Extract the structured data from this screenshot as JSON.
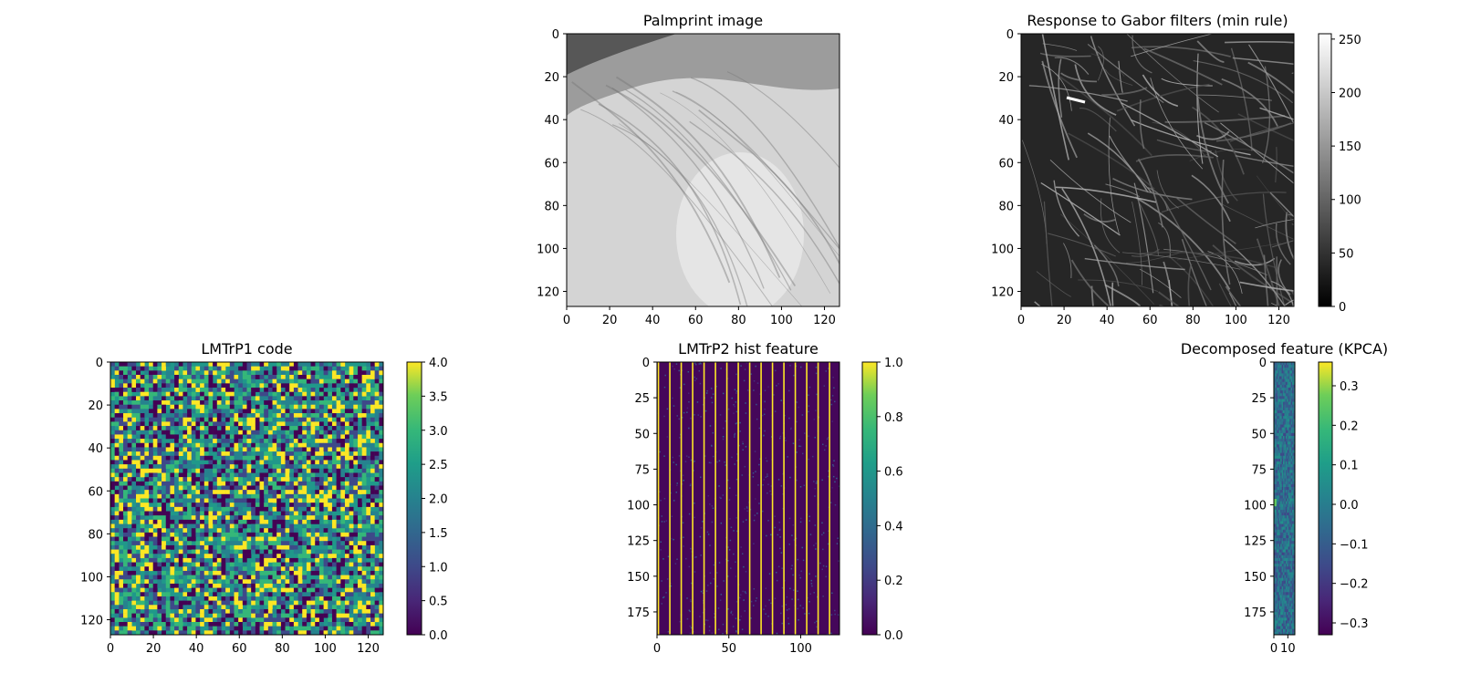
{
  "chart_data": [
    {
      "type": "heatmap",
      "title": "Palmprint image",
      "colormap": "gray",
      "image_shape": [
        128,
        128
      ],
      "xlim": [
        0,
        127
      ],
      "ylim": [
        127,
        0
      ],
      "xticks": [
        0,
        20,
        40,
        60,
        80,
        100,
        120
      ],
      "yticks": [
        0,
        20,
        40,
        60,
        80,
        100,
        120
      ],
      "colorbar": null
    },
    {
      "type": "heatmap",
      "title": "Response to Gabor filters (min rule)",
      "colormap": "gray",
      "image_shape": [
        128,
        128
      ],
      "xlim": [
        0,
        127
      ],
      "ylim": [
        127,
        0
      ],
      "xticks": [
        0,
        20,
        40,
        60,
        80,
        100,
        120
      ],
      "yticks": [
        0,
        20,
        40,
        60,
        80,
        100,
        120
      ],
      "colorbar": {
        "range": [
          0,
          255
        ],
        "ticks": [
          "0",
          "50",
          "100",
          "150",
          "200",
          "250"
        ]
      }
    },
    {
      "type": "heatmap",
      "title": "LMTrP1 code",
      "colormap": "viridis",
      "image_shape": [
        128,
        128
      ],
      "xlim": [
        0,
        127
      ],
      "ylim": [
        127,
        0
      ],
      "xticks": [
        0,
        20,
        40,
        60,
        80,
        100,
        120
      ],
      "yticks": [
        0,
        20,
        40,
        60,
        80,
        100,
        120
      ],
      "colorbar": {
        "range": [
          0,
          4
        ],
        "ticks": [
          "0.0",
          "0.5",
          "1.0",
          "1.5",
          "2.0",
          "2.5",
          "3.0",
          "3.5",
          "4.0"
        ]
      }
    },
    {
      "type": "heatmap",
      "title": "LMTrP2 hist feature",
      "colormap": "viridis",
      "image_shape": [
        192,
        128
      ],
      "xlim": [
        0,
        127
      ],
      "ylim": [
        191,
        0
      ],
      "xticks": [
        0,
        50,
        100
      ],
      "yticks": [
        0,
        25,
        50,
        75,
        100,
        125,
        150,
        175
      ],
      "colorbar": {
        "range": [
          0,
          1
        ],
        "ticks": [
          "0.0",
          "0.2",
          "0.4",
          "0.6",
          "0.8",
          "1.0"
        ]
      }
    },
    {
      "type": "heatmap",
      "title": "Decomposed feature (KPCA)",
      "colormap": "viridis",
      "image_shape": [
        192,
        16
      ],
      "xlim": [
        0,
        15
      ],
      "ylim": [
        191,
        0
      ],
      "xticks": [
        0,
        10
      ],
      "yticks": [
        0,
        25,
        50,
        75,
        100,
        125,
        150,
        175
      ],
      "colorbar": {
        "range": [
          -0.33,
          0.36
        ],
        "ticks": [
          "−0.3",
          "−0.2",
          "−0.1",
          "0.0",
          "0.1",
          "0.2",
          "0.3"
        ]
      }
    }
  ]
}
